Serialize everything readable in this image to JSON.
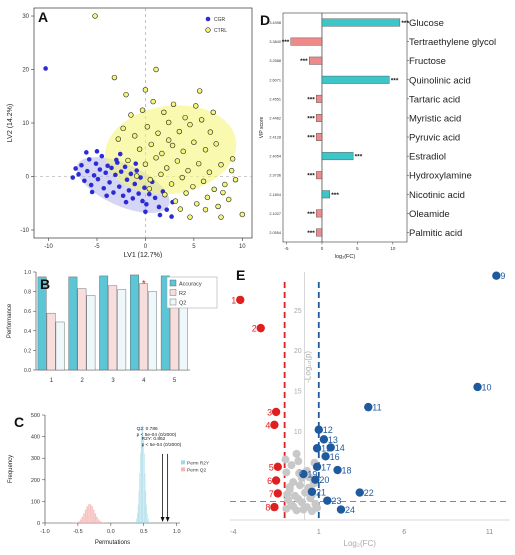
{
  "chart_data": [
    {
      "panel": "A",
      "type": "scatter",
      "xlabel": "LV1 (12.7%)",
      "ylabel": "LV2 (14.2%)",
      "xlim": [
        -11.5,
        11
      ],
      "ylim": [
        -11.5,
        31.5
      ],
      "xticks": [
        -10,
        -5,
        0,
        5,
        10
      ],
      "yticks": [
        -10,
        0,
        10,
        20,
        30
      ],
      "legend": "top-right",
      "series": [
        {
          "name": "CGR",
          "color": "#2b2bd6",
          "fill": "#b3b3ee",
          "points": [
            [
              -10.3,
              20.2
            ],
            [
              -7.5,
              -0.2
            ],
            [
              -7.2,
              1.5
            ],
            [
              -6.9,
              0.4
            ],
            [
              -6.6,
              2.1
            ],
            [
              -6.3,
              -0.8
            ],
            [
              -6.0,
              1.0
            ],
            [
              -5.8,
              3.2
            ],
            [
              -5.6,
              -1.6
            ],
            [
              -5.3,
              0.2
            ],
            [
              -5.1,
              2.4
            ],
            [
              -4.9,
              -0.5
            ],
            [
              -4.7,
              1.3
            ],
            [
              -4.5,
              3.8
            ],
            [
              -4.3,
              -2.2
            ],
            [
              -4.1,
              0.7
            ],
            [
              -3.9,
              2.0
            ],
            [
              -3.7,
              -1.1
            ],
            [
              -3.5,
              1.6
            ],
            [
              -3.3,
              -3.0
            ],
            [
              -3.1,
              0.3
            ],
            [
              -2.9,
              2.6
            ],
            [
              -2.7,
              -1.9
            ],
            [
              -2.5,
              0.9
            ],
            [
              -2.3,
              -3.6
            ],
            [
              -2.1,
              1.8
            ],
            [
              -1.9,
              -0.6
            ],
            [
              -1.7,
              -2.6
            ],
            [
              -1.5,
              0.5
            ],
            [
              -1.3,
              -4.1
            ],
            [
              -1.1,
              -1.4
            ],
            [
              -0.9,
              1.1
            ],
            [
              -0.7,
              -3.2
            ],
            [
              -0.5,
              -0.2
            ],
            [
              -0.3,
              -4.6
            ],
            [
              -0.1,
              -2.1
            ],
            [
              0.1,
              -5.2
            ],
            [
              0.4,
              -3.3
            ],
            [
              0.7,
              -1.0
            ],
            [
              1.0,
              -4.0
            ],
            [
              1.4,
              -5.7
            ],
            [
              1.8,
              -2.8
            ],
            [
              2.2,
              -6.2
            ],
            [
              2.8,
              -4.8
            ],
            [
              -6.1,
              4.5
            ],
            [
              -5.0,
              4.7
            ],
            [
              -4.0,
              -3.6
            ],
            [
              -3.0,
              3.1
            ],
            [
              -2.0,
              -4.8
            ],
            [
              -1.0,
              2.4
            ],
            [
              0.0,
              -6.6
            ],
            [
              1.5,
              -7.2
            ],
            [
              2.7,
              -7.5
            ],
            [
              -5.5,
              -2.9
            ],
            [
              -2.6,
              4.2
            ]
          ]
        },
        {
          "name": "CTRL",
          "color": "#a8a800",
          "fill": "#f5f57a",
          "points": [
            [
              -5.2,
              30.0
            ],
            [
              -3.2,
              18.5
            ],
            [
              -2.0,
              15.3
            ],
            [
              0.0,
              16.2
            ],
            [
              1.1,
              20.0
            ],
            [
              -1.5,
              11.5
            ],
            [
              -0.3,
              12.4
            ],
            [
              0.8,
              14.0
            ],
            [
              1.9,
              12.0
            ],
            [
              2.9,
              13.5
            ],
            [
              4.1,
              11.0
            ],
            [
              5.2,
              13.2
            ],
            [
              -2.3,
              9.0
            ],
            [
              -1.1,
              7.6
            ],
            [
              0.2,
              9.3
            ],
            [
              1.3,
              8.1
            ],
            [
              2.4,
              10.1
            ],
            [
              3.5,
              8.4
            ],
            [
              4.6,
              9.7
            ],
            [
              5.8,
              10.6
            ],
            [
              6.7,
              8.3
            ],
            [
              -0.6,
              5.1
            ],
            [
              0.6,
              6.0
            ],
            [
              1.7,
              4.3
            ],
            [
              2.8,
              5.8
            ],
            [
              3.9,
              4.7
            ],
            [
              5.0,
              6.4
            ],
            [
              6.2,
              5.0
            ],
            [
              7.3,
              6.1
            ],
            [
              -1.8,
              3.0
            ],
            [
              0.0,
              2.3
            ],
            [
              1.1,
              3.5
            ],
            [
              2.2,
              1.6
            ],
            [
              3.3,
              2.9
            ],
            [
              4.4,
              1.1
            ],
            [
              5.5,
              2.4
            ],
            [
              6.6,
              0.8
            ],
            [
              7.8,
              2.2
            ],
            [
              8.9,
              1.1
            ],
            [
              0.5,
              -0.6
            ],
            [
              1.6,
              0.4
            ],
            [
              2.7,
              -1.4
            ],
            [
              3.8,
              -0.2
            ],
            [
              4.9,
              -1.9
            ],
            [
              6.0,
              -0.9
            ],
            [
              7.1,
              -2.4
            ],
            [
              8.2,
              -1.5
            ],
            [
              9.3,
              -0.6
            ],
            [
              2.0,
              -3.4
            ],
            [
              3.1,
              -4.6
            ],
            [
              4.2,
              -3.1
            ],
            [
              5.3,
              -5.1
            ],
            [
              6.4,
              -3.9
            ],
            [
              7.5,
              -5.6
            ],
            [
              8.6,
              -4.3
            ],
            [
              10.0,
              -7.1
            ],
            [
              7.8,
              -7.6
            ],
            [
              -0.9,
              0.1
            ],
            [
              4.6,
              -7.6
            ],
            [
              9.0,
              3.3
            ],
            [
              8.0,
              -3.0
            ],
            [
              6.2,
              -6.2
            ],
            [
              3.6,
              -6.1
            ],
            [
              2.4,
              6.8
            ],
            [
              0.4,
              -2.3
            ],
            [
              -2.8,
              7.0
            ],
            [
              5.6,
              16.0
            ],
            [
              7.0,
              12.0
            ]
          ]
        }
      ]
    },
    {
      "panel": "B",
      "type": "bar",
      "ylabel": "Performance",
      "ylim": [
        0,
        1.0
      ],
      "yticks": [
        0.0,
        0.2,
        0.4,
        0.6,
        0.8,
        1.0
      ],
      "categories": [
        "1",
        "2",
        "3",
        "4",
        "5"
      ],
      "legend": "top-right",
      "series": [
        {
          "name": "Accuracy",
          "color": "#5cc5d6",
          "values": [
            0.95,
            0.95,
            0.96,
            0.97,
            0.96
          ]
        },
        {
          "name": "R2",
          "color": "#f7dedd",
          "values": [
            0.58,
            0.83,
            0.86,
            0.88,
            0.94
          ]
        },
        {
          "name": "Q2",
          "color": "#eef7f9",
          "values": [
            0.49,
            0.76,
            0.82,
            0.8,
            0.79
          ]
        }
      ],
      "marker": {
        "category": "4",
        "symbol": "*",
        "color": "#e02020",
        "value": 0.89
      }
    },
    {
      "panel": "C",
      "type": "histogram",
      "xlabel": "Permutations",
      "ylabel": "Frequency",
      "xlim": [
        -1.0,
        1.05
      ],
      "ylim": [
        0,
        500
      ],
      "xticks": [
        -1.0,
        -0.5,
        0.0,
        0.5,
        1.0
      ],
      "yticks": [
        0,
        100,
        200,
        300,
        400,
        500
      ],
      "legend": "right",
      "series": [
        {
          "name": "Perm R2Y",
          "color": "#9fd8e6",
          "center": 0.48,
          "sd": 0.035,
          "peak": 455
        },
        {
          "name": "Perm Q2",
          "color": "#f3b8b4",
          "center": -0.32,
          "sd": 0.075,
          "peak": 88
        }
      ],
      "arrows": [
        {
          "x": 0.786,
          "label": "Q2: 0.786",
          "p": "p < 5e-04 (0/2000)"
        },
        {
          "x": 0.862,
          "label": "R2Y: 0.862",
          "p": "p < 5e-04 (0/2000)"
        }
      ]
    },
    {
      "panel": "D",
      "type": "bar",
      "orientation": "horizontal",
      "xlabel": "log₂(FC)",
      "ylabel": "VIP score",
      "xlim": [
        -5.5,
        12
      ],
      "xticks": [
        -5,
        0,
        5,
        10
      ],
      "categories": [
        "Glucose",
        "Tertraethylene glycol",
        "Fructose",
        "Quinolinic acid",
        "Tartaric acid",
        "Myristic acid",
        "Pyruvic acid",
        "Estradiol",
        "Hydroxylamine",
        "Nicotinic acid",
        "Oleamide",
        "Palmitic acid"
      ],
      "vip": [
        "3.4398",
        "3.3840",
        "3.2588",
        "2.6071",
        "2.4551",
        "2.4462",
        "2.4128",
        "2.4054",
        "2.3736",
        "2.1804",
        "2.1027",
        "2.0554"
      ],
      "values": [
        11.0,
        -4.4,
        -1.8,
        9.5,
        -0.8,
        -0.8,
        -0.8,
        4.4,
        -0.8,
        1.1,
        -0.8,
        -0.8
      ],
      "significance": "***",
      "colors": {
        "up": "#3cc6c8",
        "down": "#ef8a8a"
      }
    },
    {
      "panel": "E",
      "type": "scatter",
      "xlabel": "Log₂(FC)",
      "ylabel": "-Log₁₀(p)",
      "xlim": [
        -4.2,
        12.2
      ],
      "ylim": [
        -1.0,
        31.0
      ],
      "xticks": [
        -4,
        1,
        6,
        11
      ],
      "yticks": [
        5,
        10,
        15,
        20,
        25
      ],
      "thresholds": {
        "x": [
          -1,
          1
        ],
        "y": 1.3
      },
      "colors": {
        "down": "#e02020",
        "up": "#1f5a9e",
        "ns": "#c8c8c8"
      },
      "down_points": [
        [
          "1",
          -3.6,
          26.3
        ],
        [
          "2",
          -2.4,
          22.8
        ],
        [
          "3",
          -1.5,
          12.4
        ],
        [
          "4",
          -1.6,
          10.8
        ],
        [
          "5",
          -1.4,
          5.6
        ],
        [
          "6",
          -1.5,
          3.9
        ],
        [
          "7",
          -1.4,
          2.3
        ],
        [
          "8",
          -1.6,
          0.6
        ]
      ],
      "up_points": [
        [
          "9",
          11.4,
          29.3
        ],
        [
          "10",
          10.3,
          15.5
        ],
        [
          "11",
          3.9,
          13.0
        ],
        [
          "12",
          1.0,
          10.2
        ],
        [
          "13",
          1.3,
          9.0
        ],
        [
          "14",
          1.7,
          8.0
        ],
        [
          "15",
          0.9,
          7.9
        ],
        [
          "16",
          1.4,
          6.9
        ],
        [
          "17",
          0.9,
          5.6
        ],
        [
          "18",
          2.1,
          5.2
        ],
        [
          "19",
          0.1,
          4.7
        ],
        [
          "20",
          0.8,
          4.0
        ],
        [
          "21",
          0.6,
          2.5
        ],
        [
          "22",
          3.4,
          2.4
        ],
        [
          "23",
          1.5,
          1.4
        ],
        [
          "24",
          2.3,
          0.3
        ]
      ],
      "ns_points": [
        [
          -0.9,
          0.4
        ],
        [
          -0.6,
          0.9
        ],
        [
          -0.3,
          0.2
        ],
        [
          0.0,
          1.2
        ],
        [
          0.3,
          0.6
        ],
        [
          0.6,
          0.1
        ],
        [
          0.8,
          1.0
        ],
        [
          -0.8,
          1.5
        ],
        [
          -0.4,
          2.0
        ],
        [
          0.2,
          2.4
        ],
        [
          0.5,
          1.7
        ],
        [
          -0.7,
          2.8
        ],
        [
          -0.1,
          3.3
        ],
        [
          0.4,
          3.0
        ],
        [
          -0.5,
          3.7
        ],
        [
          0.0,
          4.2
        ],
        [
          -0.9,
          4.9
        ],
        [
          -0.6,
          5.8
        ],
        [
          -0.2,
          6.3
        ],
        [
          0.3,
          5.1
        ],
        [
          -0.3,
          7.2
        ],
        [
          -0.7,
          3.1
        ],
        [
          0.7,
          3.5
        ],
        [
          -0.2,
          1.6
        ],
        [
          0.1,
          0.3
        ],
        [
          -0.5,
          0.7
        ],
        [
          0.6,
          2.1
        ],
        [
          -0.85,
          2.2
        ],
        [
          0.9,
          0.5
        ],
        [
          -0.15,
          4.8
        ],
        [
          0.45,
          4.3
        ],
        [
          -0.95,
          6.5
        ],
        [
          0.75,
          6.1
        ]
      ]
    }
  ]
}
